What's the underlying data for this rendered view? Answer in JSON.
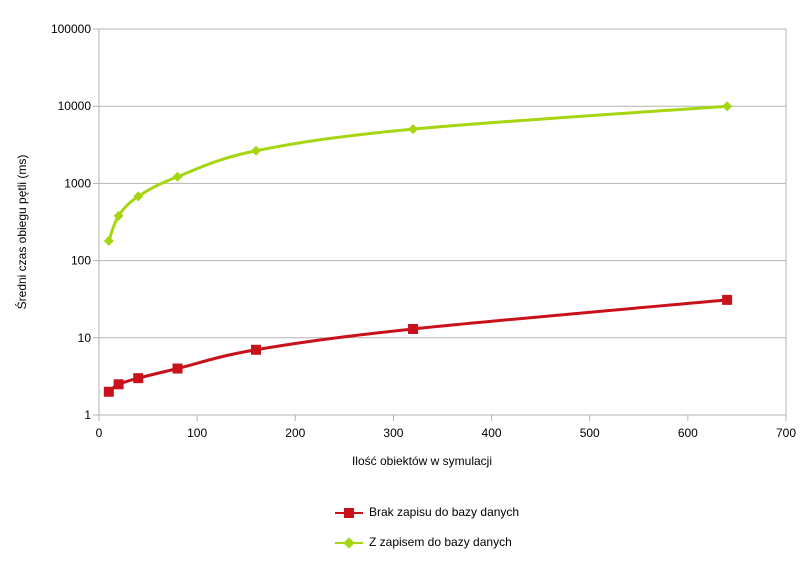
{
  "chart_data": {
    "type": "line",
    "title": "",
    "xlabel": "Ilość obiektów w symulacji",
    "ylabel": "Średni czas obiegu pętli (ms)",
    "xlim": [
      0,
      700
    ],
    "ylim": [
      1,
      100000
    ],
    "yscale": "log",
    "grid": true,
    "legend_position": "bottom",
    "xticks": [
      "0",
      "100",
      "200",
      "300",
      "400",
      "500",
      "600",
      "700"
    ],
    "yticks": [
      "1",
      "10",
      "100",
      "1000",
      "10000",
      "100000"
    ],
    "series": [
      {
        "name": "Brak zapisu do bazy danych",
        "color": "#c9111c",
        "marker": "square",
        "x": [
          10,
          20,
          40,
          80,
          160,
          320,
          640
        ],
        "y": [
          2,
          2.5,
          3,
          4,
          7,
          13,
          31
        ]
      },
      {
        "name": "Z zapisem do bazy danych",
        "color": "#a5d610",
        "marker": "diamond",
        "x": [
          10,
          20,
          40,
          80,
          160,
          320,
          640
        ],
        "y": [
          180,
          380,
          680,
          1220,
          2650,
          5050,
          10000
        ]
      }
    ]
  }
}
